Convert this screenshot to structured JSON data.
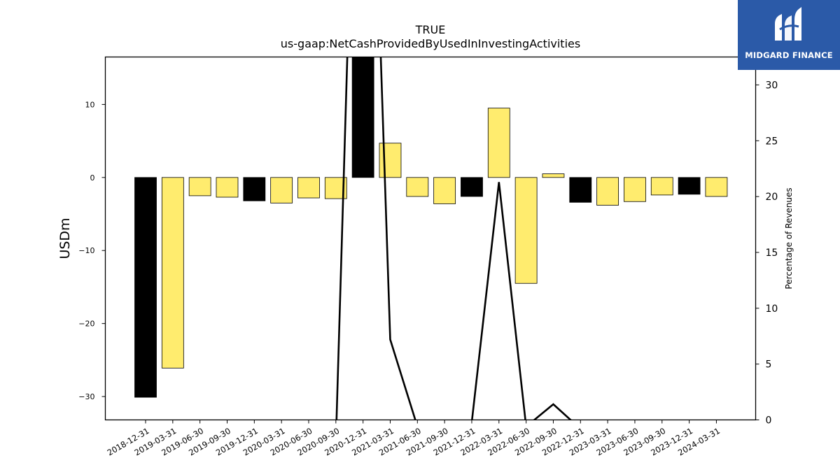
{
  "brand": {
    "name": "MIDGARD FINANCE",
    "logo_icon": "midgard-finance-logo-icon",
    "background": "#2b5aa8"
  },
  "chart_data": {
    "type": "bar",
    "title": "TRUE",
    "subtitle": "us-gaap:NetCashProvidedByUsedInInvestingActivities",
    "ylabel": "USDm",
    "y2label": "Percentage of Revenues",
    "ylim": [
      -33.2,
      16.5
    ],
    "y2lim": [
      0,
      32.5
    ],
    "yticks": [
      -30,
      -20,
      -10,
      0,
      10
    ],
    "y2ticks": [
      0,
      5,
      10,
      15,
      20,
      25,
      30
    ],
    "categories": [
      "2018-12-31",
      "2019-03-31",
      "2019-06-30",
      "2019-09-30",
      "2019-12-31",
      "2020-03-31",
      "2020-06-30",
      "2020-09-30",
      "2020-12-31",
      "2021-03-31",
      "2021-06-30",
      "2021-09-30",
      "2021-12-31",
      "2022-03-31",
      "2022-06-30",
      "2022-09-30",
      "2022-12-31",
      "2023-03-31",
      "2023-06-30",
      "2023-09-30",
      "2023-12-31",
      "2024-03-31"
    ],
    "values": [
      -30.1,
      -26.1,
      -2.5,
      -2.7,
      -3.2,
      -3.5,
      -2.8,
      -2.9,
      17.5,
      4.7,
      -2.6,
      -3.6,
      -2.6,
      9.5,
      -14.5,
      0.5,
      -3.4,
      -3.8,
      -3.3,
      -2.4,
      -2.3,
      -2.6
    ],
    "bar_colors": [
      "#000000",
      "#ffec6e",
      "#ffec6e",
      "#ffec6e",
      "#000000",
      "#ffec6e",
      "#ffec6e",
      "#ffec6e",
      "#000000",
      "#ffec6e",
      "#ffec6e",
      "#ffec6e",
      "#000000",
      "#ffec6e",
      "#ffec6e",
      "#ffec6e",
      "#000000",
      "#ffec6e",
      "#ffec6e",
      "#ffec6e",
      "#000000",
      "#ffec6e"
    ],
    "line_series": {
      "values": [
        null,
        null,
        null,
        null,
        null,
        null,
        null,
        -2,
        80,
        7.2,
        -0.6,
        null,
        -0.2,
        21.3,
        -0.6,
        1.4,
        -0.8,
        null,
        null,
        null,
        null,
        null
      ],
      "color": "#000000"
    },
    "grid": false,
    "legend": "none"
  }
}
